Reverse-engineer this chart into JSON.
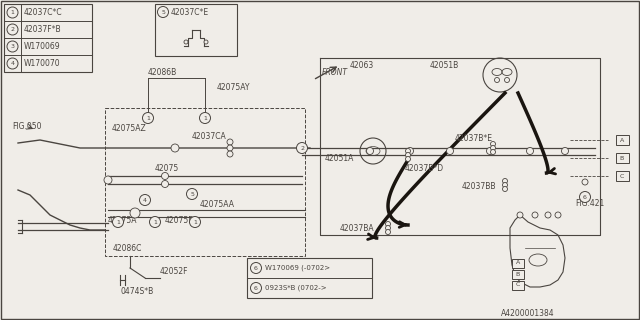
{
  "bg_color": "#f0ede8",
  "line_color": "#4a4540",
  "bold_color": "#1a1510",
  "diagram_id": "A4200001384",
  "legend_items": [
    {
      "num": "1",
      "label": "42037C*C"
    },
    {
      "num": "2",
      "label": "42037F*B"
    },
    {
      "num": "3",
      "label": "W170069"
    },
    {
      "num": "4",
      "label": "W170070"
    }
  ],
  "part6_lines": [
    "W170069 (-0702>",
    "0923S*B (0702->"
  ]
}
